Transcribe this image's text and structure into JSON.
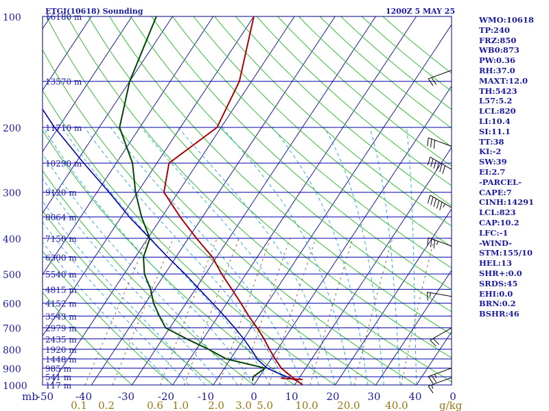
{
  "title": "ETGI(10618) Sounding",
  "valid_time": "1200Z  5 MAY 25",
  "stats": [
    "WMO:10618",
    "TP:240",
    "FRZ:850",
    "WB0:873",
    "PW:0.36",
    "RH:37.0",
    "MAXT:12.0",
    "TH:5423",
    "L57:5.2",
    "LCL:820",
    "LI:10.4",
    "SI:11.1",
    "TT:38",
    "KI:-2",
    "SW:39",
    "EI:2.7",
    "-PARCEL-",
    "CAPE:7",
    "CINH:14291",
    "LCL:823",
    "CAP:10.2",
    "LFC:-1",
    "-WIND-",
    "STM:155/10",
    "HEL:13",
    "SHR+:0.0",
    "SRDS:45",
    "EHI:0.0",
    "BRN:0.2",
    "BSHR:46"
  ],
  "axis": {
    "p_unit": "mb",
    "mix_unit": "g/kg",
    "temp_range_c": [
      -50,
      0
    ],
    "p_range_mb": [
      1000,
      100
    ],
    "pressure_labels": [
      "100",
      "200",
      "300",
      "400",
      "500",
      "600",
      "700",
      "800",
      "900",
      "1000"
    ],
    "temp_labels": [
      "-50",
      "-40",
      "-30",
      "-20",
      "-10",
      "0",
      "10",
      "20",
      "30",
      "40",
      "0"
    ],
    "mixing_labels": [
      "0.1",
      "0.2",
      "0.6",
      "1.0",
      "2.0",
      "3.0",
      "5.0",
      "10.0",
      "20.0",
      "40.0"
    ]
  },
  "colors": {
    "isobar": "#0000aa",
    "isotherm": "#1a1a9a",
    "dry_adiabat": "#33bb33",
    "moist_adiabat": "#33aadd",
    "mixing_ratio": "#886633",
    "temperature": "#aa0000",
    "dewpoint": "#004400",
    "parcel": "#0000aa",
    "text": "#1a1aa0",
    "mixing_text": "#997711"
  },
  "chart_data": {
    "type": "skew-t",
    "xlabel": "",
    "ylabel": "",
    "height_labels": [
      {
        "p": 100,
        "label": "16180 m"
      },
      {
        "p": 150,
        "label": "13570 m"
      },
      {
        "p": 200,
        "label": "11710 m"
      },
      {
        "p": 250,
        "label": "10290 m"
      },
      {
        "p": 300,
        "label": "9120 m"
      },
      {
        "p": 350,
        "label": "8064 m"
      },
      {
        "p": 400,
        "label": "7150 m"
      },
      {
        "p": 450,
        "label": "6300 m"
      },
      {
        "p": 500,
        "label": "5540 m"
      },
      {
        "p": 550,
        "label": "4815 m"
      },
      {
        "p": 600,
        "label": "4152 m"
      },
      {
        "p": 650,
        "label": "3543 m"
      },
      {
        "p": 700,
        "label": "2979 m"
      },
      {
        "p": 750,
        "label": "2435 m"
      },
      {
        "p": 800,
        "label": "1920 m"
      },
      {
        "p": 850,
        "label": "1448 m"
      },
      {
        "p": 900,
        "label": "985 m"
      },
      {
        "p": 950,
        "label": "541 m"
      },
      {
        "p": 1000,
        "label": "117 m"
      }
    ],
    "temperature": [
      [
        1000,
        12.0
      ],
      [
        975,
        10.0
      ],
      [
        950,
        8.0
      ],
      [
        925,
        6.0
      ],
      [
        900,
        4.0
      ],
      [
        850,
        1.0
      ],
      [
        800,
        -2.0
      ],
      [
        750,
        -5.0
      ],
      [
        700,
        -8.5
      ],
      [
        650,
        -12.5
      ],
      [
        600,
        -16.5
      ],
      [
        550,
        -21.0
      ],
      [
        500,
        -26.0
      ],
      [
        450,
        -31.0
      ],
      [
        400,
        -38.0
      ],
      [
        350,
        -45.5
      ],
      [
        300,
        -53.5
      ],
      [
        250,
        -57.0
      ],
      [
        200,
        -51.0
      ],
      [
        150,
        -53.0
      ],
      [
        100,
        -60.0
      ]
    ],
    "dewpoint": [
      [
        975,
        -1.0
      ],
      [
        950,
        -1.5
      ],
      [
        900,
        0.0
      ],
      [
        850,
        -11.0
      ],
      [
        800,
        -17.0
      ],
      [
        750,
        -24.0
      ],
      [
        700,
        -31.0
      ],
      [
        650,
        -34.5
      ],
      [
        600,
        -38.0
      ],
      [
        550,
        -41.0
      ],
      [
        500,
        -45.0
      ],
      [
        450,
        -48.0
      ],
      [
        400,
        -49.5
      ],
      [
        350,
        -55.0
      ],
      [
        300,
        -60.5
      ],
      [
        250,
        -66.0
      ],
      [
        200,
        -75.0
      ],
      [
        150,
        -80.0
      ],
      [
        100,
        -84.0
      ]
    ],
    "parcel": [
      [
        975,
        10.0
      ],
      [
        925,
        3.5
      ],
      [
        900,
        0.5
      ],
      [
        850,
        -3.5
      ],
      [
        823,
        -5.0
      ],
      [
        800,
        -6.5
      ],
      [
        750,
        -10.0
      ],
      [
        700,
        -14.0
      ],
      [
        650,
        -18.5
      ],
      [
        600,
        -23.5
      ],
      [
        550,
        -29.0
      ],
      [
        500,
        -35.0
      ],
      [
        450,
        -42.0
      ],
      [
        400,
        -49.5
      ],
      [
        350,
        -58.0
      ],
      [
        300,
        -67.0
      ],
      [
        250,
        -78.0
      ],
      [
        200,
        -91.0
      ],
      [
        150,
        -106.0
      ],
      [
        120,
        -118.0
      ]
    ],
    "wind_barbs": [
      {
        "p": 955,
        "dir": 250,
        "kt": 15
      },
      {
        "p": 900,
        "dir": 250,
        "kt": 25
      },
      {
        "p": 700,
        "dir": 240,
        "kt": 20
      },
      {
        "p": 575,
        "dir": 280,
        "kt": 15
      },
      {
        "p": 420,
        "dir": 290,
        "kt": 35
      },
      {
        "p": 330,
        "dir": 300,
        "kt": 55
      },
      {
        "p": 260,
        "dir": 300,
        "kt": 60
      },
      {
        "p": 225,
        "dir": 290,
        "kt": 30
      },
      {
        "p": 140,
        "dir": 250,
        "kt": 20
      }
    ]
  }
}
